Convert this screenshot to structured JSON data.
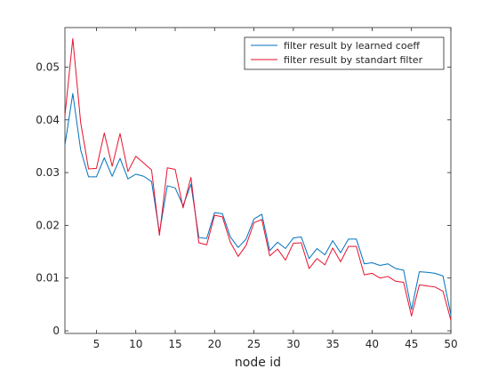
{
  "chart_data": {
    "type": "line",
    "title": "",
    "xlabel": "node id",
    "ylabel": "",
    "xlim": [
      1,
      50
    ],
    "ylim": [
      -0.0005,
      0.0575
    ],
    "xticks": [
      5,
      10,
      15,
      20,
      25,
      30,
      35,
      40,
      45,
      50
    ],
    "yticks": [
      0,
      0.01,
      0.02,
      0.03,
      0.04,
      0.05
    ],
    "ytick_labels": [
      "0",
      "0.01",
      "0.02",
      "0.03",
      "0.04",
      "0.05"
    ],
    "grid": false,
    "legend_position": "top-right",
    "x": [
      1,
      2,
      3,
      4,
      5,
      6,
      7,
      8,
      9,
      10,
      11,
      12,
      13,
      14,
      15,
      16,
      17,
      18,
      19,
      20,
      21,
      22,
      23,
      24,
      25,
      26,
      27,
      28,
      29,
      30,
      31,
      32,
      33,
      34,
      35,
      36,
      37,
      38,
      39,
      40,
      41,
      42,
      43,
      44,
      45,
      46,
      47,
      48,
      49,
      50
    ],
    "series": [
      {
        "name": "filter result by learned coeff",
        "color": "#0072BD",
        "values": [
          0.0352,
          0.045,
          0.0343,
          0.0292,
          0.0292,
          0.0328,
          0.0293,
          0.0327,
          0.0288,
          0.0297,
          0.0293,
          0.0283,
          0.0186,
          0.0275,
          0.0271,
          0.0237,
          0.0278,
          0.0177,
          0.0175,
          0.0224,
          0.0222,
          0.0178,
          0.0158,
          0.0174,
          0.0212,
          0.0221,
          0.0152,
          0.0168,
          0.0156,
          0.0176,
          0.0178,
          0.0137,
          0.0156,
          0.0144,
          0.0171,
          0.0148,
          0.0174,
          0.0174,
          0.0127,
          0.0129,
          0.0124,
          0.0127,
          0.0118,
          0.0115,
          0.004,
          0.0112,
          0.0111,
          0.0109,
          0.0104,
          0.003
        ]
      },
      {
        "name": "filter result by standart filter",
        "color": "#D95319",
        "stroke": "#E8112D",
        "values": [
          0.0408,
          0.0554,
          0.0395,
          0.0307,
          0.0308,
          0.0375,
          0.0312,
          0.0374,
          0.0302,
          0.0331,
          0.0318,
          0.0305,
          0.0181,
          0.0309,
          0.0306,
          0.0233,
          0.0291,
          0.0167,
          0.0163,
          0.0219,
          0.0216,
          0.0168,
          0.0141,
          0.0162,
          0.0205,
          0.0211,
          0.0142,
          0.0155,
          0.0134,
          0.0166,
          0.0167,
          0.0118,
          0.0137,
          0.0125,
          0.0157,
          0.0131,
          0.016,
          0.016,
          0.0106,
          0.0109,
          0.01,
          0.0103,
          0.0094,
          0.0092,
          0.0028,
          0.0087,
          0.0085,
          0.0083,
          0.0075,
          0.002
        ]
      }
    ]
  }
}
